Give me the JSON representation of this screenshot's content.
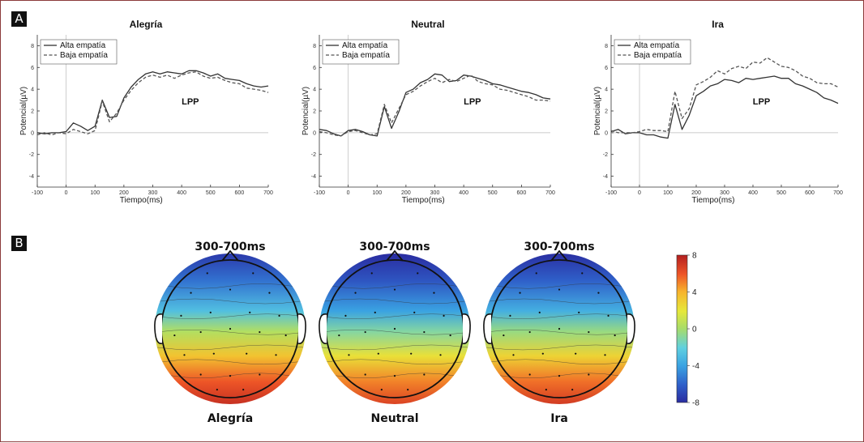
{
  "panel_labels": {
    "a": "A",
    "b": "B"
  },
  "colors": {
    "alta": "#333333",
    "baja": "#555555",
    "zero_line": "#bbbbbb"
  },
  "chart_data": [
    {
      "type": "line",
      "title": "Alegría",
      "xlabel": "Tiempo(ms)",
      "ylabel": "Potencial(µV)",
      "annotation": "LPP",
      "xlim": [
        -100,
        700
      ],
      "ylim": [
        -5,
        9
      ],
      "xticks": [
        -100,
        0,
        100,
        200,
        300,
        400,
        500,
        600,
        700
      ],
      "yticks": [
        8,
        6,
        4,
        2,
        0,
        -2,
        -4
      ],
      "legend": [
        "Alta empatía",
        "Baja empatía"
      ],
      "x": [
        -100,
        -75,
        -50,
        -25,
        0,
        25,
        50,
        75,
        100,
        125,
        150,
        175,
        200,
        225,
        250,
        275,
        300,
        325,
        350,
        375,
        400,
        425,
        450,
        475,
        500,
        525,
        550,
        575,
        600,
        625,
        650,
        675,
        700
      ],
      "series": [
        {
          "name": "Alta empatía",
          "values": [
            0,
            -0.1,
            0,
            0,
            0.1,
            0.9,
            0.6,
            0.2,
            0.6,
            3.0,
            1.4,
            1.5,
            3.2,
            4.2,
            4.9,
            5.4,
            5.6,
            5.4,
            5.6,
            5.5,
            5.4,
            5.7,
            5.7,
            5.5,
            5.2,
            5.4,
            5.0,
            4.9,
            4.8,
            4.5,
            4.3,
            4.2,
            4.3
          ]
        },
        {
          "name": "Baja empatía",
          "values": [
            -0.2,
            0,
            -0.2,
            0,
            -0.1,
            0.3,
            0.1,
            -0.1,
            0.2,
            2.9,
            1.0,
            1.8,
            3.0,
            3.9,
            4.6,
            5.1,
            5.3,
            5.1,
            5.3,
            5.0,
            5.3,
            5.5,
            5.6,
            5.2,
            5.0,
            5.1,
            4.8,
            4.6,
            4.5,
            4.1,
            4.0,
            3.9,
            3.7
          ]
        }
      ]
    },
    {
      "type": "line",
      "title": "Neutral",
      "xlabel": "Tiempo(ms)",
      "ylabel": "Potencial(µV)",
      "annotation": "LPP",
      "xlim": [
        -100,
        700
      ],
      "ylim": [
        -5,
        9
      ],
      "xticks": [
        -100,
        0,
        100,
        200,
        300,
        400,
        500,
        600,
        700
      ],
      "yticks": [
        8,
        6,
        4,
        2,
        0,
        -2,
        -4
      ],
      "legend": [
        "Alta empatía",
        "Baja empatía"
      ],
      "x": [
        -100,
        -75,
        -50,
        -25,
        0,
        25,
        50,
        75,
        100,
        125,
        150,
        175,
        200,
        225,
        250,
        275,
        300,
        325,
        350,
        375,
        400,
        425,
        450,
        475,
        500,
        525,
        550,
        575,
        600,
        625,
        650,
        675,
        700
      ],
      "series": [
        {
          "name": "Alta empatía",
          "values": [
            0.3,
            0.2,
            -0.1,
            -0.3,
            0.2,
            0.3,
            0.1,
            -0.2,
            -0.3,
            2.4,
            0.4,
            1.9,
            3.7,
            4.0,
            4.6,
            4.9,
            5.4,
            5.3,
            4.7,
            4.8,
            5.3,
            5.2,
            5.0,
            4.8,
            4.5,
            4.4,
            4.2,
            4.0,
            3.8,
            3.7,
            3.5,
            3.2,
            3.1
          ]
        },
        {
          "name": "Baja empatía",
          "values": [
            0.1,
            0,
            -0.2,
            -0.3,
            0.1,
            0.2,
            0,
            -0.2,
            -0.1,
            2.6,
            0.9,
            2.2,
            3.5,
            3.8,
            4.3,
            4.7,
            5.0,
            4.6,
            4.9,
            4.7,
            5.0,
            5.3,
            4.7,
            4.5,
            4.4,
            4.0,
            3.9,
            3.7,
            3.5,
            3.3,
            3.0,
            3.0,
            2.9
          ]
        }
      ]
    },
    {
      "type": "line",
      "title": "Ira",
      "xlabel": "Tiempo(ms)",
      "ylabel": "Potencial(µV)",
      "annotation": "LPP",
      "xlim": [
        -100,
        700
      ],
      "ylim": [
        -5,
        9
      ],
      "xticks": [
        -100,
        0,
        100,
        200,
        300,
        400,
        500,
        600,
        700
      ],
      "yticks": [
        8,
        6,
        4,
        2,
        0,
        -2,
        -4
      ],
      "legend": [
        "Alta empatía",
        "Baja empatía"
      ],
      "x": [
        -100,
        -75,
        -50,
        -25,
        0,
        25,
        50,
        75,
        100,
        125,
        150,
        175,
        200,
        225,
        250,
        275,
        300,
        325,
        350,
        375,
        400,
        425,
        450,
        475,
        500,
        525,
        550,
        575,
        600,
        625,
        650,
        675,
        700
      ],
      "series": [
        {
          "name": "Alta empatía",
          "values": [
            0.1,
            0.3,
            -0.1,
            0,
            0,
            -0.2,
            -0.2,
            -0.4,
            -0.5,
            2.6,
            0.3,
            1.6,
            3.4,
            3.8,
            4.3,
            4.5,
            4.9,
            4.8,
            4.6,
            5.0,
            4.9,
            5.0,
            5.1,
            5.2,
            5.0,
            5.0,
            4.5,
            4.3,
            4.0,
            3.7,
            3.2,
            3.0,
            2.7
          ]
        },
        {
          "name": "Baja empatía",
          "values": [
            0.2,
            0,
            0,
            0,
            0.1,
            0.3,
            0.2,
            0.2,
            0.1,
            3.8,
            1.3,
            2.2,
            4.4,
            4.7,
            5.1,
            5.7,
            5.4,
            5.9,
            6.1,
            5.9,
            6.5,
            6.4,
            6.9,
            6.5,
            6.1,
            6.0,
            5.7,
            5.2,
            5.0,
            4.6,
            4.5,
            4.5,
            4.2
          ]
        }
      ]
    }
  ],
  "topomaps": {
    "time_window": "300-700ms",
    "maps": [
      {
        "label": "Alegría",
        "bias": 0.0
      },
      {
        "label": "Neutral",
        "bias": -0.7
      },
      {
        "label": "Ira",
        "bias": -0.4
      }
    ],
    "colorbar": {
      "min": -8,
      "max": 8,
      "ticks": [
        8,
        4,
        0,
        -4,
        -8
      ]
    }
  }
}
